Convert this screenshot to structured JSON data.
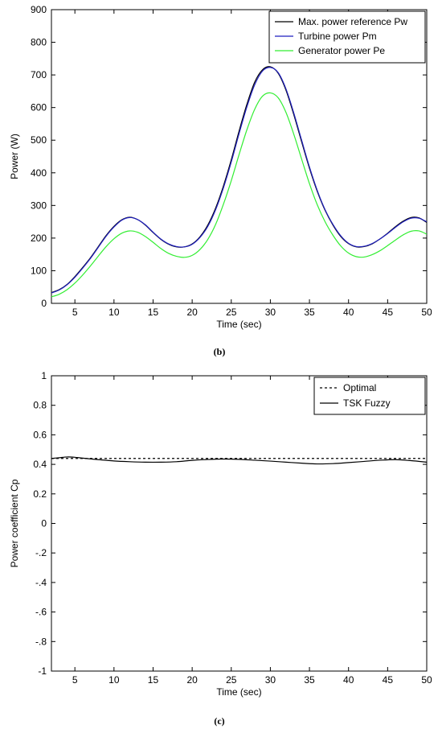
{
  "chart_data": [
    {
      "type": "line",
      "caption": "(b)",
      "xlabel": "Time (sec)",
      "ylabel": "Power (W)",
      "xlim": [
        2,
        50
      ],
      "ylim": [
        0,
        900
      ],
      "xticks": [
        5,
        10,
        15,
        20,
        25,
        30,
        35,
        40,
        45,
        50
      ],
      "yticks": [
        0,
        100,
        200,
        300,
        400,
        500,
        600,
        700,
        800,
        900
      ],
      "grid": false,
      "legend_position": "top-right",
      "colors": {
        "pw": "#000000",
        "pm": "#1f1fbf",
        "pe": "#33ee33"
      },
      "series": [
        {
          "name": "Max. power reference Pw",
          "style": "solid",
          "x": [
            2,
            3,
            4,
            5,
            6,
            7,
            8,
            9,
            10,
            11,
            12,
            13,
            14,
            15,
            16,
            17,
            18,
            19,
            20,
            21,
            22,
            23,
            24,
            25,
            26,
            27,
            28,
            29,
            30,
            31,
            32,
            33,
            34,
            35,
            36,
            37,
            38,
            39,
            40,
            41,
            42,
            43,
            44,
            45,
            46,
            47,
            48,
            49,
            50
          ],
          "values": [
            33,
            42,
            58,
            82,
            110,
            140,
            174,
            208,
            236,
            256,
            264,
            257,
            240,
            217,
            196,
            181,
            173,
            173,
            182,
            204,
            240,
            292,
            360,
            440,
            528,
            610,
            678,
            716,
            725,
            705,
            653,
            578,
            495,
            414,
            343,
            285,
            240,
            205,
            183,
            173,
            174,
            182,
            197,
            215,
            235,
            252,
            263,
            262,
            248
          ]
        },
        {
          "name": "Turbine power Pm",
          "style": "solid",
          "x": [
            2,
            3,
            4,
            5,
            6,
            7,
            8,
            9,
            10,
            11,
            12,
            13,
            14,
            15,
            16,
            17,
            18,
            19,
            20,
            21,
            22,
            23,
            24,
            25,
            26,
            27,
            28,
            29,
            30,
            31,
            32,
            33,
            34,
            35,
            36,
            37,
            38,
            39,
            40,
            41,
            42,
            43,
            44,
            45,
            46,
            47,
            48,
            49,
            50
          ],
          "values": [
            32,
            41,
            57,
            80,
            108,
            138,
            172,
            206,
            234,
            255,
            263,
            257,
            241,
            218,
            197,
            182,
            174,
            173,
            181,
            202,
            236,
            287,
            354,
            433,
            520,
            602,
            670,
            712,
            723,
            707,
            657,
            583,
            500,
            418,
            346,
            287,
            242,
            207,
            184,
            174,
            175,
            183,
            197,
            214,
            233,
            250,
            261,
            261,
            250
          ]
        },
        {
          "name": "Generator power Pe",
          "style": "solid",
          "x": [
            2,
            3,
            4,
            5,
            6,
            7,
            8,
            9,
            10,
            11,
            12,
            13,
            14,
            15,
            16,
            17,
            18,
            19,
            20,
            21,
            22,
            23,
            24,
            25,
            26,
            27,
            28,
            29,
            30,
            31,
            32,
            33,
            34,
            35,
            36,
            37,
            38,
            39,
            40,
            41,
            42,
            43,
            44,
            45,
            46,
            47,
            48,
            49,
            50
          ],
          "values": [
            20,
            28,
            42,
            62,
            87,
            115,
            145,
            174,
            198,
            215,
            222,
            218,
            205,
            187,
            168,
            153,
            144,
            141,
            147,
            165,
            196,
            242,
            304,
            376,
            456,
            532,
            595,
            635,
            645,
            630,
            585,
            518,
            442,
            367,
            302,
            250,
            209,
            176,
            154,
            143,
            142,
            149,
            161,
            177,
            194,
            210,
            221,
            222,
            212
          ]
        }
      ]
    },
    {
      "type": "line",
      "caption": "(c)",
      "xlabel": "Time (sec)",
      "ylabel": "Power coefficient Cp",
      "xlim": [
        2,
        50
      ],
      "ylim": [
        -1,
        1
      ],
      "xticks": [
        5,
        10,
        15,
        20,
        25,
        30,
        35,
        40,
        45,
        50
      ],
      "yticks": [
        -1,
        -0.8,
        -0.6,
        -0.4,
        -0.2,
        0,
        0.2,
        0.4,
        0.6,
        0.8,
        1
      ],
      "grid": false,
      "legend_position": "top-right",
      "colors": {
        "opt": "#000000",
        "tsk": "#000000"
      },
      "series": [
        {
          "name": "Optimal",
          "style": "dashed",
          "x": [
            2,
            50
          ],
          "values": [
            0.44,
            0.44
          ]
        },
        {
          "name": "TSK Fuzzy",
          "style": "solid",
          "x": [
            2,
            3,
            4,
            5,
            6,
            8,
            10,
            12,
            14,
            16,
            18,
            20,
            22,
            24,
            26,
            28,
            30,
            32,
            34,
            36,
            38,
            40,
            42,
            44,
            46,
            48,
            50
          ],
          "values": [
            0.44,
            0.445,
            0.45,
            0.448,
            0.442,
            0.432,
            0.423,
            0.418,
            0.415,
            0.415,
            0.418,
            0.427,
            0.433,
            0.436,
            0.434,
            0.428,
            0.422,
            0.415,
            0.408,
            0.403,
            0.405,
            0.412,
            0.42,
            0.428,
            0.432,
            0.425,
            0.415
          ]
        }
      ]
    }
  ]
}
